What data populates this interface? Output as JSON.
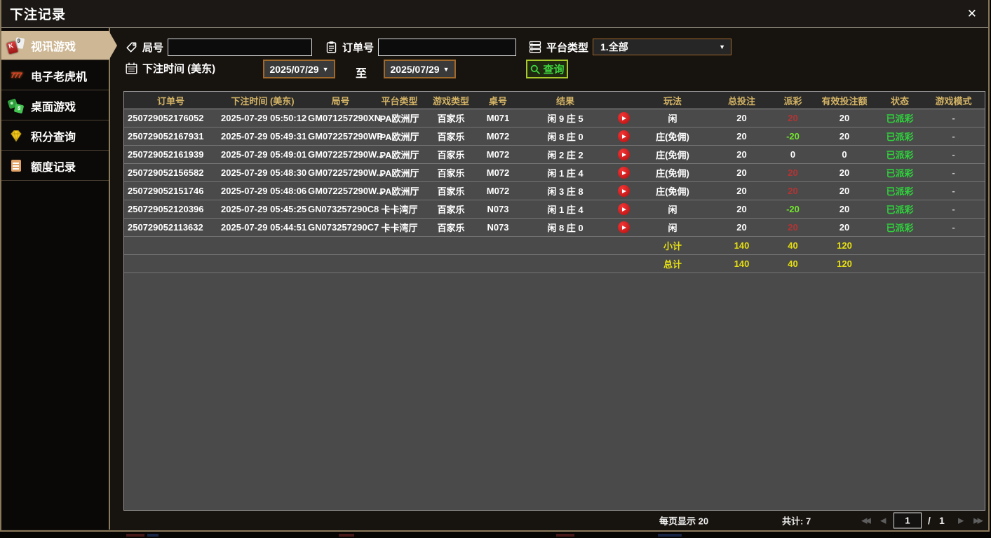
{
  "window": {
    "title": "下注记录",
    "close_glyph": "✕"
  },
  "sidebar": {
    "items": [
      {
        "label": "视讯游戏",
        "selected": true
      },
      {
        "label": "电子老虎机",
        "selected": false
      },
      {
        "label": "桌面游戏",
        "selected": false
      },
      {
        "label": "积分查询",
        "selected": false
      },
      {
        "label": "额度记录",
        "selected": false
      }
    ]
  },
  "filters": {
    "round": {
      "label": "局号",
      "value": ""
    },
    "order": {
      "label": "订单号",
      "value": ""
    },
    "platform": {
      "label": "平台类型",
      "value": "1.全部"
    },
    "bet_time_label": "下注时间 (美东)",
    "to_label": "至",
    "date_from": "2025/07/29",
    "date_to": "2025/07/29",
    "dropdown_glyph": "▼",
    "query_label": "查询"
  },
  "table": {
    "columns": [
      "订单号",
      "下注时间 (美东)",
      "局号",
      "平台类型",
      "游戏类型",
      "桌号",
      "结果",
      "",
      "玩法",
      "总投注",
      "派彩",
      "有效投注额",
      "状态",
      "游戏模式"
    ],
    "rows": [
      {
        "order": "250729052176052",
        "time": "2025-07-29 05:50:12",
        "round": "GM071257290XN",
        "platform": "PA欧洲厅",
        "game": "百家乐",
        "table": "M071",
        "result": "闲 9 庄 5",
        "play": "闲",
        "total": "20",
        "payout": "20",
        "payout_type": "positive",
        "valid": "20",
        "status": "已派彩",
        "mode": "-"
      },
      {
        "order": "250729052167931",
        "time": "2025-07-29 05:49:31",
        "round": "GM072257290WP",
        "platform": "PA欧洲厅",
        "game": "百家乐",
        "table": "M072",
        "result": "闲 8 庄 0",
        "play": "庄(免佣)",
        "total": "20",
        "payout": "-20",
        "payout_type": "negative",
        "valid": "20",
        "status": "已派彩",
        "mode": "-"
      },
      {
        "order": "250729052161939",
        "time": "2025-07-29 05:49:01",
        "round": "GM072257290W...",
        "platform": "PA欧洲厅",
        "game": "百家乐",
        "table": "M072",
        "result": "闲 2 庄 2",
        "play": "庄(免佣)",
        "total": "20",
        "payout": "0",
        "payout_type": "zero",
        "valid": "0",
        "status": "已派彩",
        "mode": "-"
      },
      {
        "order": "250729052156582",
        "time": "2025-07-29 05:48:30",
        "round": "GM072257290W...",
        "platform": "PA欧洲厅",
        "game": "百家乐",
        "table": "M072",
        "result": "闲 1 庄 4",
        "play": "庄(免佣)",
        "total": "20",
        "payout": "20",
        "payout_type": "positive",
        "valid": "20",
        "status": "已派彩",
        "mode": "-"
      },
      {
        "order": "250729052151746",
        "time": "2025-07-29 05:48:06",
        "round": "GM072257290W...",
        "platform": "PA欧洲厅",
        "game": "百家乐",
        "table": "M072",
        "result": "闲 3 庄 8",
        "play": "庄(免佣)",
        "total": "20",
        "payout": "20",
        "payout_type": "positive",
        "valid": "20",
        "status": "已派彩",
        "mode": "-"
      },
      {
        "order": "250729052120396",
        "time": "2025-07-29 05:45:25",
        "round": "GN073257290C8",
        "platform": "卡卡湾厅",
        "game": "百家乐",
        "table": "N073",
        "result": "闲 1 庄 4",
        "play": "闲",
        "total": "20",
        "payout": "-20",
        "payout_type": "negative",
        "valid": "20",
        "status": "已派彩",
        "mode": "-"
      },
      {
        "order": "250729052113632",
        "time": "2025-07-29 05:44:51",
        "round": "GN073257290C7",
        "platform": "卡卡湾厅",
        "game": "百家乐",
        "table": "N073",
        "result": "闲 8 庄 0",
        "play": "闲",
        "total": "20",
        "payout": "20",
        "payout_type": "positive",
        "valid": "20",
        "status": "已派彩",
        "mode": "-"
      }
    ],
    "subtotal": {
      "label": "小计",
      "total": "140",
      "payout": "40",
      "valid": "120"
    },
    "grand_total": {
      "label": "总计",
      "total": "140",
      "payout": "40",
      "valid": "120"
    }
  },
  "pagination": {
    "per_page": "每页显示 20",
    "total_count": "共计: 7",
    "page_value": "1",
    "separator": "/",
    "page_total": "1",
    "first_glyph": "◀◀",
    "prev_glyph": "◀",
    "next_glyph": "▶",
    "last_glyph": "▶▶"
  },
  "colors": {
    "accent_gold": "#d5b465",
    "tab_selected_bg": "#cdb794",
    "payout_positive": "#b23434",
    "payout_negative": "#72e62e",
    "status_paid": "#2fd23c",
    "summary_yellow": "#e6df12",
    "query_green": "#3ed43e",
    "date_border": "#a0692a",
    "mode_dash": "#c8c8c8"
  }
}
